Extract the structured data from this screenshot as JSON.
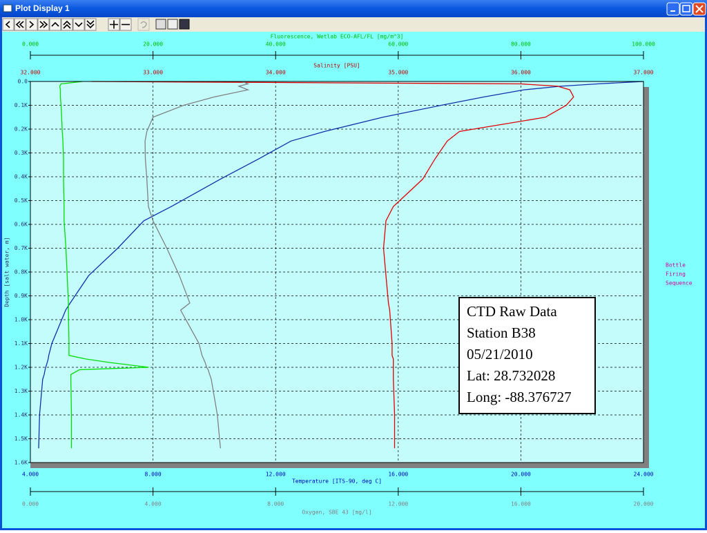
{
  "window": {
    "title": "Plot Display 1"
  },
  "chart_data": {
    "type": "line",
    "ylabel": "Depth [salt water, m]",
    "y_reversed": true,
    "grid": true,
    "ylim": [
      0,
      1600
    ],
    "yticks": [
      {
        "value": 0,
        "label": "0.0"
      },
      {
        "value": 100,
        "label": "0.1K"
      },
      {
        "value": 200,
        "label": "0.2K"
      },
      {
        "value": 300,
        "label": "0.3K"
      },
      {
        "value": 400,
        "label": "0.4K"
      },
      {
        "value": 500,
        "label": "0.5K"
      },
      {
        "value": 600,
        "label": "0.6K"
      },
      {
        "value": 700,
        "label": "0.7K"
      },
      {
        "value": 800,
        "label": "0.8K"
      },
      {
        "value": 900,
        "label": "0.9K"
      },
      {
        "value": 1000,
        "label": "1.0K"
      },
      {
        "value": 1100,
        "label": "1.1K"
      },
      {
        "value": 1200,
        "label": "1.2K"
      },
      {
        "value": 1300,
        "label": "1.3K"
      },
      {
        "value": 1400,
        "label": "1.4K"
      },
      {
        "value": 1500,
        "label": "1.5K"
      },
      {
        "value": 1600,
        "label": "1.6K"
      }
    ],
    "x_axes": [
      {
        "label": "Fluorescence, Wetlab ECO-AFL/FL [mg/m^3]",
        "color": "#00c000",
        "position": "top",
        "xlim": [
          0,
          100
        ],
        "xticks": [
          {
            "value": 0,
            "label": "0.000"
          },
          {
            "value": 20,
            "label": "20.000"
          },
          {
            "value": 40,
            "label": "40.000"
          },
          {
            "value": 60,
            "label": "60.000"
          },
          {
            "value": 80,
            "label": "80.000"
          },
          {
            "value": 100,
            "label": "100.000"
          }
        ]
      },
      {
        "label": "Salinity [PSU]",
        "color": "#c00000",
        "position": "top",
        "xlim": [
          32,
          37
        ],
        "xticks": [
          {
            "value": 32,
            "label": "32.000"
          },
          {
            "value": 33,
            "label": "33.000"
          },
          {
            "value": 34,
            "label": "34.000"
          },
          {
            "value": 35,
            "label": "35.000"
          },
          {
            "value": 36,
            "label": "36.000"
          },
          {
            "value": 37,
            "label": "37.000"
          }
        ]
      },
      {
        "label": "Temperature [ITS-90, deg C]",
        "color": "#0000c0",
        "position": "bottom",
        "xlim": [
          4,
          24
        ],
        "xticks": [
          {
            "value": 4,
            "label": "4.000"
          },
          {
            "value": 8,
            "label": "8.000"
          },
          {
            "value": 12,
            "label": "12.000"
          },
          {
            "value": 16,
            "label": "16.000"
          },
          {
            "value": 20,
            "label": "20.000"
          },
          {
            "value": 24,
            "label": "24.000"
          }
        ]
      },
      {
        "label": "Oxygen, SBE 43 [mg/l]",
        "color": "#808080",
        "position": "bottom",
        "xlim": [
          0,
          20
        ],
        "xticks": [
          {
            "value": 0,
            "label": "0.000"
          },
          {
            "value": 4,
            "label": "4.000"
          },
          {
            "value": 8,
            "label": "8.000"
          },
          {
            "value": 12,
            "label": "12.000"
          },
          {
            "value": 16,
            "label": "16.000"
          },
          {
            "value": 20,
            "label": "20.000"
          }
        ]
      }
    ],
    "depth": [
      0,
      10,
      20,
      35,
      65,
      100,
      150,
      210,
      250,
      325,
      410,
      525,
      585,
      700,
      815,
      930,
      960,
      1100,
      1150,
      1165,
      1180,
      1200,
      1210,
      1230,
      1250,
      1400,
      1540
    ],
    "series": [
      {
        "axis": 2,
        "color": "#1030b0",
        "values": [
          24,
          22.5,
          21.3,
          20.1,
          18.8,
          17.4,
          15.5,
          13.6,
          12.5,
          11.45,
          10.2,
          8.6,
          7.7,
          6.85,
          5.9,
          5.3,
          5.15,
          4.7,
          4.6,
          4.58,
          4.55,
          4.5,
          4.48,
          4.45,
          4.4,
          4.3,
          4.27
        ]
      },
      {
        "axis": 1,
        "color": "#e00000",
        "values": [
          32.5,
          36.0,
          36.3,
          36.4,
          36.43,
          36.37,
          36.2,
          35.5,
          35.4,
          35.3,
          35.2,
          34.96,
          34.9,
          34.88,
          34.9,
          34.92,
          34.93,
          34.95,
          34.95,
          34.96,
          34.96,
          34.96,
          34.96,
          34.96,
          34.96,
          34.97,
          34.97
        ]
      },
      {
        "axis": 0,
        "color": "#00e000",
        "values": [
          8.5,
          5.0,
          4.8,
          4.9,
          4.9,
          5.0,
          5.1,
          5.2,
          5.3,
          5.4,
          5.4,
          5.5,
          5.5,
          5.8,
          6.0,
          6.2,
          6.2,
          6.3,
          6.3,
          9.0,
          13.0,
          19.3,
          8.0,
          6.6,
          6.6,
          6.7,
          6.7
        ]
      },
      {
        "axis": 3,
        "color": "#808080",
        "values": [
          6.9,
          7.1,
          6.8,
          7.1,
          6.0,
          5.0,
          4.0,
          3.8,
          3.74,
          3.75,
          3.8,
          3.85,
          4.0,
          4.45,
          4.86,
          5.2,
          4.9,
          5.5,
          5.6,
          5.65,
          5.7,
          5.75,
          5.8,
          5.85,
          5.9,
          6.1,
          6.2
        ]
      }
    ],
    "annotation": [
      "CTD Raw Data",
      "Station B38",
      "05/21/2010",
      "Lat: 28.732028",
      "Long: -88.376727"
    ],
    "side_label": [
      "Bottle",
      "Firing",
      "Sequence"
    ]
  }
}
